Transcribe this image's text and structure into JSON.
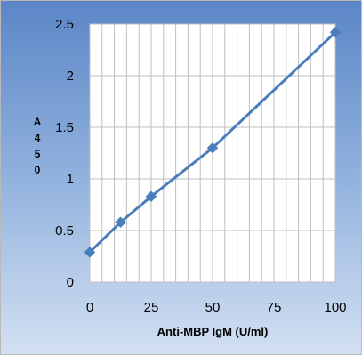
{
  "chart_data": {
    "type": "scatter",
    "xlabel": "Anti-MBP IgM (U/ml)",
    "ylabel": "A450",
    "xlim": [
      0,
      100
    ],
    "ylim": [
      0,
      2.5
    ],
    "x_ticks": [
      "0",
      "25",
      "50",
      "75",
      "100"
    ],
    "y_ticks": [
      "0",
      "0.5",
      "1",
      "1.5",
      "2",
      "2.5"
    ],
    "grid": true,
    "x_minor_step": 5,
    "series": [
      {
        "x": [
          0,
          12.5,
          25,
          50,
          100
        ],
        "y": [
          0.29,
          0.58,
          0.83,
          1.3,
          2.42
        ],
        "line": true,
        "marker": "diamond",
        "color": "#4a7ebb"
      }
    ]
  }
}
